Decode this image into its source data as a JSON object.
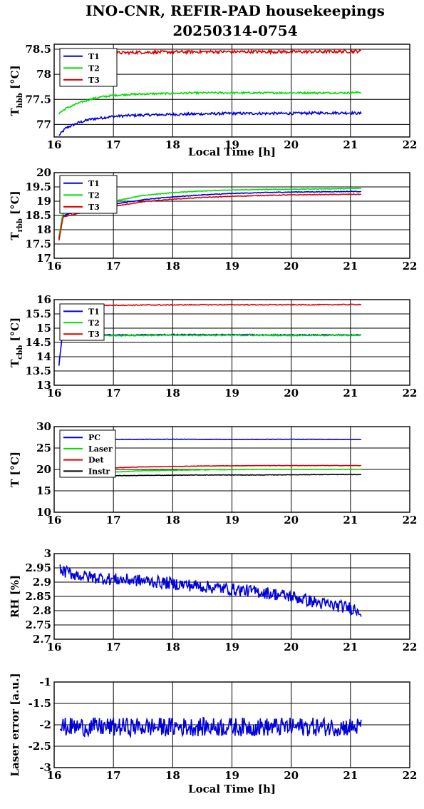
{
  "title_line1": "INO-CNR, REFIR-PAD housekeepings",
  "title_line2": "20250314-0754",
  "colors": {
    "blue": "#0000dd",
    "green": "#00dd00",
    "red": "#dd0000",
    "black": "#000000"
  },
  "chart_data": [
    {
      "type": "line",
      "ylabel_main": "T",
      "ylabel_sub": "hbb",
      "ylabel_unit": "[°C]",
      "xlabel": "Local Time [h]",
      "xlim": [
        16,
        22
      ],
      "ylim": [
        76.75,
        78.6
      ],
      "xticks": [
        "16",
        "17",
        "18",
        "19",
        "20",
        "21",
        "22"
      ],
      "yticks": [
        77,
        77.5,
        78,
        78.5
      ],
      "ytick_labels": [
        "77",
        "77.5",
        "78",
        "78.5"
      ],
      "legend": "top-left",
      "grid": true,
      "series": [
        {
          "name": "T1",
          "color": "blue",
          "start": 16.08,
          "end": 21.18,
          "noise": 0.025,
          "x": [
            16.08,
            16.2,
            16.4,
            16.6,
            16.8,
            17.0,
            17.3,
            17.6,
            18.0,
            18.5,
            19.0,
            19.5,
            20.0,
            20.5,
            21.0,
            21.18
          ],
          "y": [
            76.78,
            76.93,
            77.03,
            77.1,
            77.13,
            77.16,
            77.18,
            77.19,
            77.2,
            77.21,
            77.22,
            77.22,
            77.22,
            77.23,
            77.23,
            77.22
          ]
        },
        {
          "name": "T2",
          "color": "green",
          "start": 16.08,
          "end": 21.18,
          "noise": 0.018,
          "x": [
            16.08,
            16.2,
            16.4,
            16.6,
            16.8,
            17.0,
            17.3,
            17.6,
            18.0,
            18.5,
            19.0,
            19.5,
            20.0,
            20.5,
            21.0,
            21.18
          ],
          "y": [
            77.22,
            77.32,
            77.42,
            77.5,
            77.55,
            77.58,
            77.6,
            77.61,
            77.62,
            77.63,
            77.63,
            77.63,
            77.63,
            77.63,
            77.63,
            77.64
          ]
        },
        {
          "name": "T3",
          "color": "red",
          "start": 16.8,
          "end": 21.18,
          "noise": 0.03,
          "x": [
            16.8,
            17.5,
            18.5,
            19.5,
            20.5,
            21.18
          ],
          "y": [
            78.42,
            78.44,
            78.45,
            78.45,
            78.45,
            78.46
          ]
        }
      ]
    },
    {
      "type": "line",
      "ylabel_main": "T",
      "ylabel_sub": "rbb",
      "ylabel_unit": "[°C]",
      "xlabel": "",
      "xlim": [
        16,
        22
      ],
      "ylim": [
        17,
        20
      ],
      "xticks": [
        "16",
        "17",
        "18",
        "19",
        "20",
        "21",
        "22"
      ],
      "yticks": [
        17,
        17.5,
        18,
        18.5,
        19,
        19.5,
        20
      ],
      "ytick_labels": [
        "17",
        "17.5",
        "18",
        "18.5",
        "19",
        "19.5",
        "20"
      ],
      "legend": "top-left",
      "grid": true,
      "series": [
        {
          "name": "T1",
          "color": "blue",
          "start": 16.08,
          "end": 21.18,
          "noise": 0.012,
          "x": [
            16.08,
            16.15,
            16.5,
            17.0,
            17.5,
            18.0,
            18.5,
            19.0,
            19.5,
            20.0,
            20.5,
            21.0,
            21.18
          ],
          "y": [
            17.7,
            18.5,
            18.7,
            18.9,
            19.05,
            19.15,
            19.22,
            19.27,
            19.3,
            19.32,
            19.33,
            19.34,
            19.34
          ]
        },
        {
          "name": "T2",
          "color": "green",
          "start": 16.08,
          "end": 21.18,
          "noise": 0.012,
          "x": [
            16.08,
            16.15,
            16.5,
            17.0,
            17.5,
            18.0,
            18.5,
            19.0,
            19.5,
            20.0,
            20.5,
            21.0,
            21.18
          ],
          "y": [
            17.75,
            18.6,
            18.8,
            19.0,
            19.2,
            19.3,
            19.36,
            19.39,
            19.41,
            19.42,
            19.43,
            19.44,
            19.45
          ]
        },
        {
          "name": "T3",
          "color": "red",
          "start": 16.08,
          "end": 21.18,
          "noise": 0.012,
          "x": [
            16.08,
            16.15,
            16.5,
            17.0,
            17.5,
            18.0,
            18.5,
            19.0,
            19.5,
            20.0,
            20.5,
            21.0,
            21.18
          ],
          "y": [
            17.62,
            18.45,
            18.62,
            18.82,
            18.98,
            19.07,
            19.13,
            19.17,
            19.2,
            19.22,
            19.23,
            19.24,
            19.24
          ]
        }
      ]
    },
    {
      "type": "line",
      "ylabel_main": "T",
      "ylabel_sub": "cbb",
      "ylabel_unit": "[°C]",
      "xlabel": "",
      "xlim": [
        16,
        22
      ],
      "ylim": [
        13,
        16
      ],
      "xticks": [
        "16",
        "17",
        "18",
        "19",
        "20",
        "21",
        "22"
      ],
      "yticks": [
        13,
        13.5,
        14,
        14.5,
        15,
        15.5,
        16
      ],
      "ytick_labels": [
        "13",
        "13.5",
        "14",
        "14.5",
        "15",
        "15.5",
        "16"
      ],
      "legend": "top-left",
      "grid": true,
      "series": [
        {
          "name": "T1",
          "color": "blue",
          "start": 16.08,
          "end": 21.18,
          "noise": 0.02,
          "x": [
            16.08,
            16.13,
            16.2,
            17.0,
            18.0,
            19.0,
            20.0,
            21.0,
            21.18
          ],
          "y": [
            13.7,
            14.6,
            14.75,
            14.76,
            14.77,
            14.77,
            14.76,
            14.76,
            14.76
          ]
        },
        {
          "name": "T2",
          "color": "green",
          "start": 16.8,
          "end": 21.18,
          "noise": 0.02,
          "x": [
            16.8,
            17.5,
            18.5,
            19.5,
            20.5,
            21.18
          ],
          "y": [
            14.74,
            14.75,
            14.75,
            14.75,
            14.75,
            14.75
          ]
        },
        {
          "name": "T3",
          "color": "red",
          "start": 16.8,
          "end": 21.18,
          "noise": 0.015,
          "x": [
            16.8,
            17.5,
            18.5,
            19.5,
            20.5,
            21.18
          ],
          "y": [
            15.8,
            15.81,
            15.82,
            15.82,
            15.82,
            15.83
          ]
        }
      ]
    },
    {
      "type": "line",
      "ylabel_main": "T [°C]",
      "ylabel_sub": "",
      "ylabel_unit": "",
      "xlabel": "",
      "xlim": [
        16,
        22
      ],
      "ylim": [
        10,
        30
      ],
      "xticks": [
        "16",
        "17",
        "18",
        "19",
        "20",
        "21",
        "22"
      ],
      "yticks": [
        10,
        15,
        20,
        25,
        30
      ],
      "ytick_labels": [
        "10",
        "15",
        "20",
        "25",
        "30"
      ],
      "legend": "top-left",
      "grid": true,
      "series": [
        {
          "name": "PC",
          "color": "blue",
          "start": 16.85,
          "end": 21.18,
          "noise": 0.05,
          "x": [
            16.85,
            18.0,
            19.0,
            20.0,
            21.18
          ],
          "y": [
            27.0,
            27.05,
            27.0,
            27.05,
            27.0
          ]
        },
        {
          "name": "Laser",
          "color": "green",
          "start": 16.85,
          "end": 21.18,
          "noise": 0.05,
          "x": [
            16.85,
            17.5,
            18.5,
            19.5,
            20.5,
            21.18
          ],
          "y": [
            19.3,
            19.7,
            19.9,
            20.0,
            20.0,
            20.0
          ]
        },
        {
          "name": "Det",
          "color": "red",
          "start": 16.85,
          "end": 21.18,
          "noise": 0.05,
          "x": [
            16.85,
            17.5,
            18.5,
            19.5,
            20.5,
            21.18
          ],
          "y": [
            20.3,
            20.6,
            20.8,
            20.9,
            20.9,
            20.9
          ]
        },
        {
          "name": "Instr",
          "color": "black",
          "start": 16.85,
          "end": 21.18,
          "noise": 0.05,
          "x": [
            16.85,
            17.5,
            18.5,
            19.5,
            20.5,
            21.18
          ],
          "y": [
            18.5,
            18.6,
            18.7,
            18.7,
            18.8,
            18.8
          ]
        }
      ]
    },
    {
      "type": "line",
      "ylabel_main": "RH [%]",
      "ylabel_sub": "",
      "ylabel_unit": "",
      "xlabel": "",
      "xlim": [
        16,
        22
      ],
      "ylim": [
        2.7,
        3.0
      ],
      "xticks": [
        "16",
        "17",
        "18",
        "19",
        "20",
        "21",
        "22"
      ],
      "yticks": [
        2.7,
        2.75,
        2.8,
        2.85,
        2.9,
        2.95,
        3.0
      ],
      "ytick_labels": [
        "2.7",
        "2.75",
        "2.8",
        "2.85",
        "2.9",
        "2.95",
        "3"
      ],
      "legend": "none",
      "grid": true,
      "series": [
        {
          "name": "",
          "color": "blue",
          "start": 16.1,
          "end": 21.18,
          "noise": 0.022,
          "x": [
            16.1,
            16.5,
            17.0,
            17.5,
            18.0,
            18.5,
            19.0,
            19.5,
            20.0,
            20.5,
            21.0,
            21.18
          ],
          "y": [
            2.94,
            2.92,
            2.91,
            2.905,
            2.895,
            2.885,
            2.875,
            2.865,
            2.85,
            2.825,
            2.81,
            2.8
          ]
        }
      ]
    },
    {
      "type": "line",
      "ylabel_main": "Laser error [a.u.]",
      "ylabel_sub": "",
      "ylabel_unit": "",
      "xlabel": "Local Time [h]",
      "xlim": [
        16,
        22
      ],
      "ylim": [
        -3,
        -1
      ],
      "xticks": [
        "16",
        "17",
        "18",
        "19",
        "20",
        "21",
        "22"
      ],
      "yticks": [
        -3,
        -2.5,
        -2,
        -1.5,
        -1
      ],
      "ytick_labels": [
        "-3",
        "-2.5",
        "-2",
        "-1.5",
        "-1"
      ],
      "legend": "none",
      "grid": true,
      "series": [
        {
          "name": "",
          "color": "blue",
          "start": 16.1,
          "end": 21.18,
          "noise": 0.22,
          "x": [
            16.1,
            21.18
          ],
          "y": [
            -2.05,
            -2.05
          ]
        }
      ]
    }
  ]
}
